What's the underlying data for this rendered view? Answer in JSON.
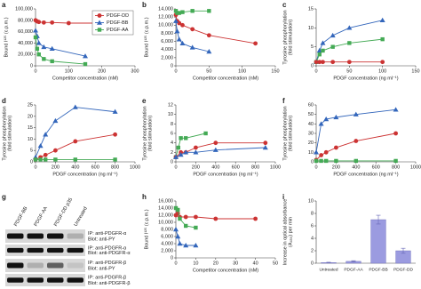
{
  "chart_data": [
    {
      "type": "line",
      "label": "a",
      "ylabel": "Bound I¹²⁵ (c.p.m.)",
      "xlabel": "Competitor concentration (nM)",
      "xlim": [
        0,
        300
      ],
      "xticks": [
        0,
        100,
        200,
        300
      ],
      "ylim": [
        0,
        100000
      ],
      "yticks": [
        0,
        {
          "value": 20000,
          "label": "20,000"
        },
        {
          "value": 40000,
          "label": "40,000"
        },
        {
          "value": 60000,
          "label": "60,000"
        },
        {
          "value": 80000,
          "label": "80,000"
        },
        {
          "value": 100000,
          "label": "100,000"
        }
      ],
      "legend": "upper right",
      "series": [
        {
          "name": "PDGF-DD",
          "color": "#cc3333",
          "marker": "circle",
          "x": [
            0,
            5,
            10,
            25,
            50,
            100,
            250
          ],
          "values": [
            80000,
            78000,
            77000,
            76000,
            76000,
            75000,
            75000
          ]
        },
        {
          "name": "PDGF-BB",
          "color": "#3366bb",
          "marker": "triangle",
          "x": [
            0,
            5,
            10,
            25,
            50,
            150
          ],
          "values": [
            62000,
            52000,
            40000,
            33000,
            30000,
            17000
          ]
        },
        {
          "name": "PDGF-AA",
          "color": "#44aa55",
          "marker": "square",
          "x": [
            0,
            5,
            10,
            25,
            50,
            150
          ],
          "values": [
            50000,
            30000,
            20000,
            12000,
            8000,
            3000
          ]
        }
      ]
    },
    {
      "type": "line",
      "label": "b",
      "ylabel": "Bound I¹²⁵ (c.p.m.)",
      "xlabel": "Competitor concentration (nM)",
      "xlim": [
        0,
        150
      ],
      "xticks": [
        0,
        50,
        100,
        150
      ],
      "ylim": [
        0,
        14000
      ],
      "yticks": [
        0,
        {
          "value": 2000,
          "label": "2,000"
        },
        {
          "value": 4000,
          "label": "4,000"
        },
        {
          "value": 6000,
          "label": "6,000"
        },
        {
          "value": 8000,
          "label": "8,000"
        },
        {
          "value": 10000,
          "label": "10,000"
        },
        {
          "value": 12000,
          "label": "12,000"
        },
        {
          "value": 14000,
          "label": "14,000"
        }
      ],
      "series": [
        {
          "color": "#cc3333",
          "marker": "circle",
          "x": [
            0,
            2,
            5,
            10,
            25,
            50,
            120
          ],
          "values": [
            12500,
            11000,
            10500,
            10000,
            9000,
            7500,
            5500
          ]
        },
        {
          "color": "#3366bb",
          "marker": "triangle",
          "x": [
            0,
            2,
            5,
            10,
            25,
            50
          ],
          "values": [
            11000,
            8500,
            6500,
            5500,
            4500,
            3500
          ]
        },
        {
          "color": "#44aa55",
          "marker": "square",
          "x": [
            0,
            2,
            5,
            10,
            25,
            50
          ],
          "values": [
            13500,
            13000,
            13000,
            13200,
            13500,
            13500
          ]
        }
      ]
    },
    {
      "type": "line",
      "label": "c",
      "ylabel": [
        "Tyrosine phosphorylation",
        "(fold stimulation)"
      ],
      "xlabel": "PDGF concentration (ng ml⁻¹)",
      "xlim": [
        0,
        150
      ],
      "xticks": [
        0,
        50,
        100,
        150
      ],
      "ylim": [
        0,
        15
      ],
      "yticks": [
        0,
        5,
        10,
        15
      ],
      "series": [
        {
          "color": "#3366bb",
          "marker": "triangle",
          "x": [
            0,
            5,
            10,
            25,
            50,
            100
          ],
          "values": [
            1,
            4,
            6,
            8,
            10,
            12
          ]
        },
        {
          "color": "#44aa55",
          "marker": "square",
          "x": [
            0,
            5,
            10,
            25,
            50,
            100
          ],
          "values": [
            1,
            3,
            4,
            5,
            6,
            7
          ]
        },
        {
          "color": "#cc3333",
          "marker": "circle",
          "x": [
            0,
            5,
            10,
            25,
            50,
            100
          ],
          "values": [
            1,
            1,
            1,
            1,
            1,
            1
          ]
        }
      ]
    },
    {
      "type": "line",
      "label": "d",
      "ylabel": [
        "Tyrosine phosphorylation",
        "(fold stimulation)"
      ],
      "xlabel": "PDGF concentration (ng ml⁻¹)",
      "xlim": [
        0,
        1000
      ],
      "xticks": [
        0,
        200,
        400,
        600,
        800,
        1000
      ],
      "ylim": [
        0,
        25
      ],
      "yticks": [
        0,
        5,
        10,
        15,
        20,
        25
      ],
      "series": [
        {
          "color": "#3366bb",
          "marker": "triangle",
          "x": [
            0,
            50,
            100,
            200,
            400,
            800
          ],
          "values": [
            2,
            7,
            12,
            18,
            24,
            22
          ]
        },
        {
          "color": "#cc3333",
          "marker": "circle",
          "x": [
            0,
            50,
            100,
            200,
            400,
            800
          ],
          "values": [
            1,
            2,
            3,
            5,
            9,
            12
          ]
        },
        {
          "color": "#44aa55",
          "marker": "square",
          "x": [
            0,
            50,
            100,
            200,
            400,
            800
          ],
          "values": [
            1,
            1,
            1,
            1,
            1,
            1
          ]
        }
      ]
    },
    {
      "type": "line",
      "label": "e",
      "ylabel": [
        "Tyrosine phosphorylation",
        "(fold stimulation)"
      ],
      "xlabel": "PDGF concentration (ng ml⁻¹)",
      "xlim": [
        0,
        1000
      ],
      "xticks": [
        0,
        200,
        400,
        600,
        800,
        1000
      ],
      "ylim": [
        0,
        12
      ],
      "yticks": [
        0,
        2,
        4,
        6,
        8,
        10,
        12
      ],
      "series": [
        {
          "color": "#44aa55",
          "marker": "square",
          "x": [
            0,
            25,
            50,
            100,
            300
          ],
          "values": [
            1,
            3,
            5,
            5,
            6
          ]
        },
        {
          "color": "#cc3333",
          "marker": "circle",
          "x": [
            0,
            50,
            100,
            200,
            400,
            900
          ],
          "values": [
            1,
            2,
            2,
            3,
            4,
            4
          ]
        },
        {
          "color": "#3366bb",
          "marker": "triangle",
          "x": [
            0,
            50,
            100,
            200,
            400,
            900
          ],
          "values": [
            1,
            1.5,
            2,
            2,
            2.5,
            3
          ]
        }
      ]
    },
    {
      "type": "line",
      "label": "f",
      "ylabel": [
        "Tyrosine phosphorylation",
        "(fold stimulation)"
      ],
      "xlabel": "PDGF concentration (ng ml⁻¹)",
      "xlim": [
        0,
        1000
      ],
      "xticks": [
        0,
        200,
        400,
        600,
        800,
        1000
      ],
      "ylim": [
        0,
        60
      ],
      "yticks": [
        0,
        10,
        20,
        30,
        40,
        50,
        60
      ],
      "series": [
        {
          "color": "#3366bb",
          "marker": "triangle",
          "x": [
            0,
            50,
            100,
            200,
            400,
            800
          ],
          "values": [
            10,
            40,
            45,
            47,
            50,
            55
          ]
        },
        {
          "color": "#cc3333",
          "marker": "circle",
          "x": [
            0,
            50,
            100,
            200,
            400,
            800
          ],
          "values": [
            2,
            7,
            10,
            15,
            22,
            30
          ]
        },
        {
          "color": "#44aa55",
          "marker": "square",
          "x": [
            0,
            50,
            100,
            200,
            400,
            800
          ],
          "values": [
            1,
            1,
            1,
            1,
            1,
            1
          ]
        }
      ]
    },
    {
      "type": "blot",
      "label": "g",
      "lanes": [
        "PDGF-BB",
        "PDGF-AA",
        "PDGF-DD p35",
        "Untreated"
      ],
      "rows": [
        {
          "ip": "IP: anti-PDGFR-α",
          "blot": "Blot: anti-PY"
        },
        {
          "ip": "IP: anti-PDGFR-α",
          "blot": "Blot: anti-PDGFR-α"
        },
        {
          "ip": "IP: anti-PDGFR-β",
          "blot": "Blot: anti-PY"
        },
        {
          "ip": "IP: anti-PDGFR-β",
          "blot": "Blot: anti-PDGFR-β"
        }
      ]
    },
    {
      "type": "line",
      "label": "h",
      "ylabel": "Bound I¹²⁵ (c.p.m.)",
      "xlabel": "Competitor concentration (nM)",
      "xlim": [
        0,
        50
      ],
      "xticks": [
        0,
        10,
        20,
        30,
        40,
        50
      ],
      "ylim": [
        0,
        16000
      ],
      "yticks": [
        0,
        {
          "value": 2000,
          "label": "2,000"
        },
        {
          "value": 4000,
          "label": "4,000"
        },
        {
          "value": 6000,
          "label": "6,000"
        },
        {
          "value": 8000,
          "label": "8,000"
        },
        {
          "value": 10000,
          "label": "10,000"
        },
        {
          "value": 12000,
          "label": "12,000"
        },
        {
          "value": 14000,
          "label": "14,000"
        },
        {
          "value": 16000,
          "label": "16,000"
        }
      ],
      "series": [
        {
          "color": "#cc3333",
          "marker": "circle",
          "x": [
            0,
            1,
            2,
            5,
            10,
            20,
            40
          ],
          "values": [
            12000,
            12500,
            11500,
            11500,
            11500,
            11000,
            11000
          ]
        },
        {
          "color": "#3366bb",
          "marker": "triangle",
          "x": [
            0,
            1,
            2,
            5,
            10
          ],
          "values": [
            8000,
            6000,
            4000,
            3500,
            3500
          ]
        },
        {
          "color": "#44aa55",
          "marker": "square",
          "x": [
            0,
            1,
            2,
            5,
            10
          ],
          "values": [
            14000,
            13500,
            11000,
            9000,
            8500
          ]
        }
      ]
    },
    {
      "type": "bar",
      "label": "i",
      "ylabel": [
        "Increase in optical absorbance",
        "(A₄₅₀) per min"
      ],
      "categories": [
        "Untreated",
        "PDGF-AA",
        "PDGF-BB",
        "PDGF-DD"
      ],
      "values": [
        0.1,
        0.3,
        7,
        2
      ],
      "errors": [
        0.05,
        0.1,
        0.7,
        0.4
      ],
      "color": "#9b9be0",
      "ylim": [
        0,
        10
      ],
      "yticks": [
        0,
        2,
        4,
        6,
        8,
        10
      ]
    }
  ]
}
